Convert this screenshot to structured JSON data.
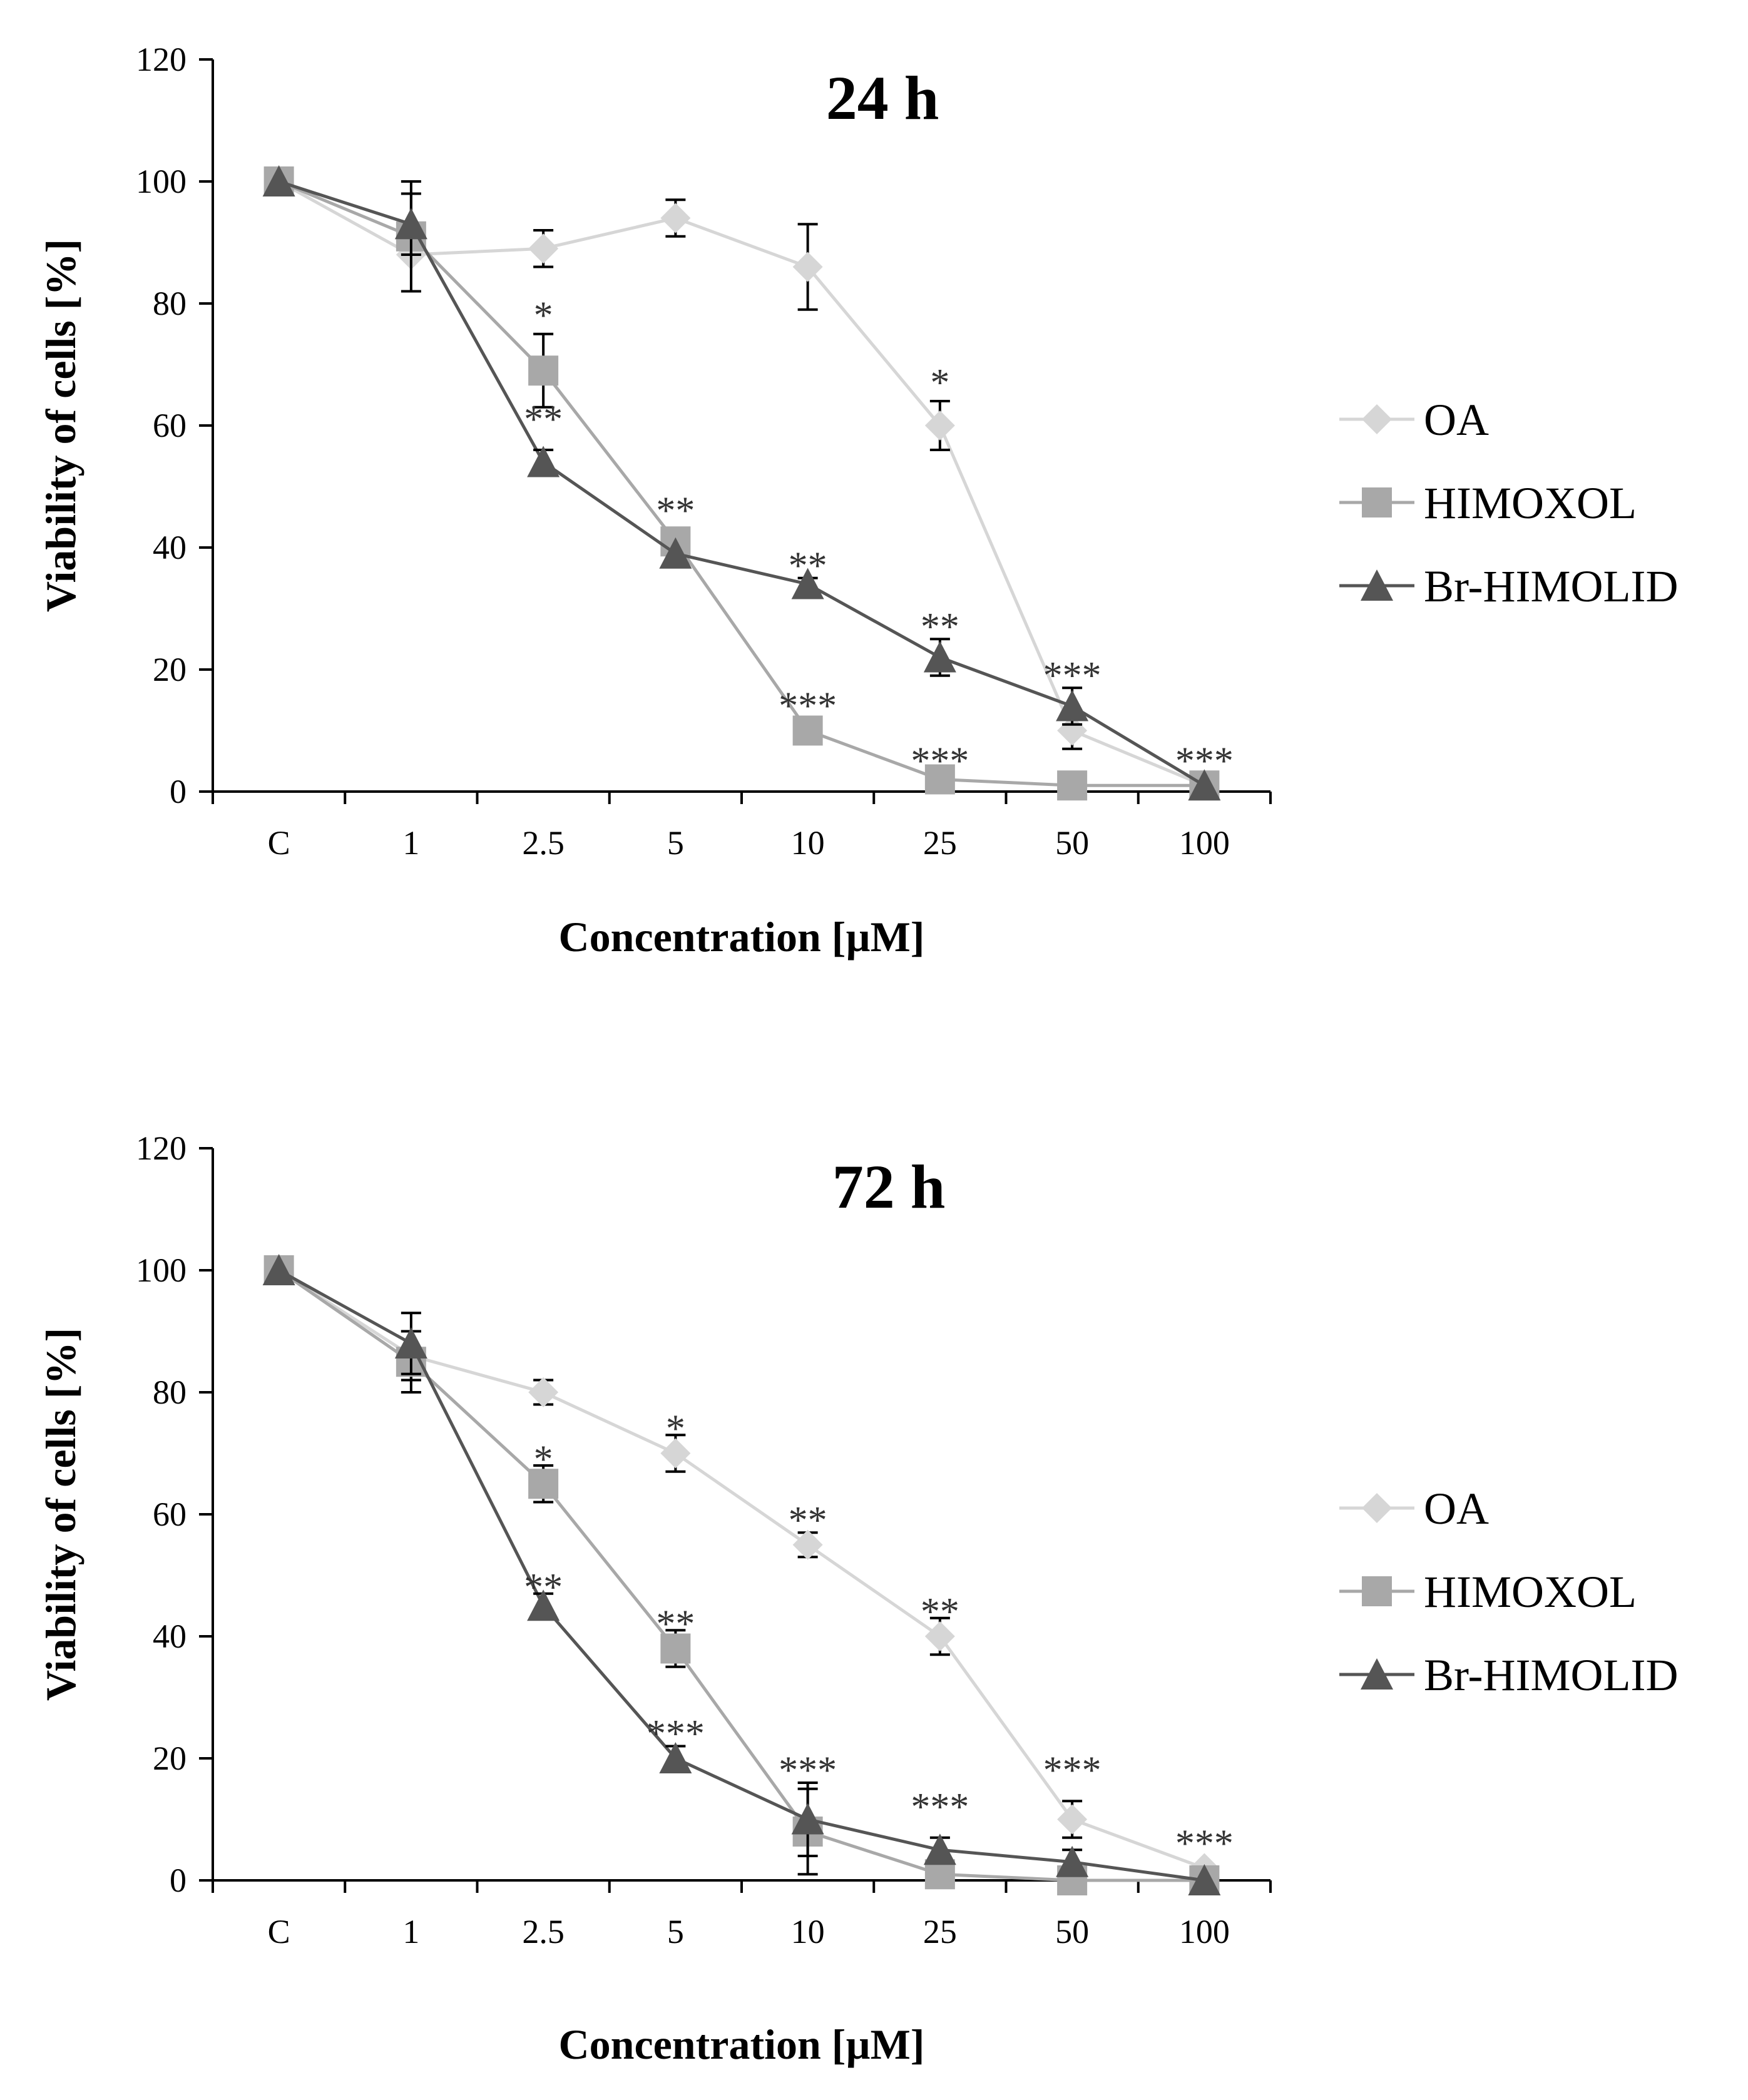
{
  "chart_data": [
    {
      "type": "line",
      "title": "24 h",
      "xlabel": "Concentration  [µM]",
      "ylabel": "Viability  of cells [%]",
      "categories": [
        "C",
        "1",
        "2.5",
        "5",
        "10",
        "25",
        "50",
        "100"
      ],
      "ylim": [
        0,
        120
      ],
      "yticks": [
        "0",
        "20",
        "40",
        "60",
        "80",
        "100",
        "120"
      ],
      "legend_position": "right",
      "series": [
        {
          "name": "OA",
          "color": "#d6d6d6",
          "marker": "diamond",
          "values": [
            100,
            88,
            89,
            94,
            86,
            60,
            10,
            1
          ],
          "errors": [
            0,
            0,
            3,
            3,
            7,
            4,
            3,
            0
          ]
        },
        {
          "name": "HIMOXOL",
          "color": "#a8a8a8",
          "marker": "square",
          "values": [
            100,
            91,
            69,
            41,
            10,
            2,
            1,
            1
          ],
          "errors": [
            0,
            9,
            6,
            0,
            0,
            0,
            0,
            0
          ]
        },
        {
          "name": "Br-HIMOLID",
          "color": "#555555",
          "marker": "triangle",
          "values": [
            100,
            93,
            54,
            39,
            34,
            22,
            14,
            1
          ],
          "errors": [
            0,
            5,
            2,
            0,
            1,
            3,
            3,
            0
          ]
        }
      ],
      "annotations": [
        {
          "x": "2.5",
          "y": 78,
          "text": "*"
        },
        {
          "x": "2.5",
          "y": 61,
          "text": "**"
        },
        {
          "x": "5",
          "y": 46,
          "text": "**"
        },
        {
          "x": "10",
          "y": 37,
          "text": "**"
        },
        {
          "x": "10",
          "y": 14,
          "text": "***"
        },
        {
          "x": "25",
          "y": 67,
          "text": "*"
        },
        {
          "x": "25",
          "y": 27,
          "text": "**"
        },
        {
          "x": "25",
          "y": 5,
          "text": "***"
        },
        {
          "x": "50",
          "y": 19,
          "text": "***"
        },
        {
          "x": "100",
          "y": 5,
          "text": "***"
        }
      ]
    },
    {
      "type": "line",
      "title": "72 h",
      "xlabel": "Concentration  [µM]",
      "ylabel": "Viability  of cells [%]",
      "categories": [
        "C",
        "1",
        "2.5",
        "5",
        "10",
        "25",
        "50",
        "100"
      ],
      "ylim": [
        0,
        120
      ],
      "yticks": [
        "0",
        "20",
        "40",
        "60",
        "80",
        "100",
        "120"
      ],
      "legend_position": "right",
      "series": [
        {
          "name": "OA",
          "color": "#d6d6d6",
          "marker": "diamond",
          "values": [
            100,
            86,
            80,
            70,
            55,
            40,
            10,
            2
          ],
          "errors": [
            0,
            4,
            2,
            3,
            2,
            3,
            3,
            0
          ]
        },
        {
          "name": "HIMOXOL",
          "color": "#a8a8a8",
          "marker": "square",
          "values": [
            100,
            85,
            65,
            38,
            8,
            1,
            0,
            0
          ],
          "errors": [
            0,
            5,
            3,
            3,
            7,
            0,
            0,
            0
          ]
        },
        {
          "name": "Br-HIMOLID",
          "color": "#555555",
          "marker": "triangle",
          "values": [
            100,
            88,
            45,
            20,
            10,
            5,
            3,
            0
          ],
          "errors": [
            0,
            5,
            2,
            2,
            6,
            2,
            2,
            0
          ]
        }
      ],
      "annotations": [
        {
          "x": "2.5",
          "y": 69,
          "text": "*"
        },
        {
          "x": "2.5",
          "y": 48,
          "text": "**"
        },
        {
          "x": "5",
          "y": 74,
          "text": "*"
        },
        {
          "x": "5",
          "y": 42,
          "text": "**"
        },
        {
          "x": "5",
          "y": 24,
          "text": "***"
        },
        {
          "x": "10",
          "y": 59,
          "text": "**"
        },
        {
          "x": "10",
          "y": 18,
          "text": "***"
        },
        {
          "x": "25",
          "y": 44,
          "text": "**"
        },
        {
          "x": "25",
          "y": 12,
          "text": "***"
        },
        {
          "x": "50",
          "y": 18,
          "text": "***"
        },
        {
          "x": "100",
          "y": 6,
          "text": "***"
        }
      ]
    }
  ]
}
